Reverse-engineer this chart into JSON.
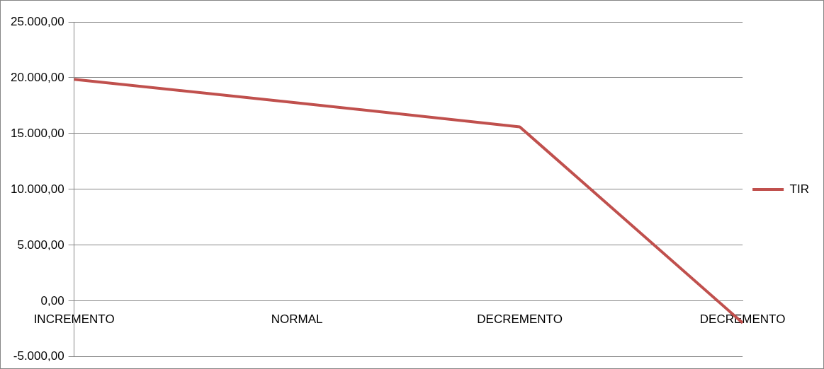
{
  "chart_data": {
    "type": "line",
    "categories": [
      "INCREMENTO",
      "NORMAL",
      "DECREMENTO",
      "DECREMENTO"
    ],
    "series": [
      {
        "name": "TIR",
        "color": "#c0504d",
        "values": [
          19850,
          17750,
          15600,
          -1950
        ]
      }
    ],
    "ylim": [
      -5000,
      25000
    ],
    "yticks": [
      {
        "value": -5000,
        "label": "-5.000,00"
      },
      {
        "value": 0,
        "label": "0,00"
      },
      {
        "value": 5000,
        "label": "5.000,00"
      },
      {
        "value": 10000,
        "label": "10.000,00"
      },
      {
        "value": 15000,
        "label": "15.000,00"
      },
      {
        "value": 20000,
        "label": "20.000,00"
      },
      {
        "value": 25000,
        "label": "25.000,00"
      }
    ],
    "grid": "y",
    "legend": "right",
    "marker": "none",
    "line_style": "solid"
  }
}
